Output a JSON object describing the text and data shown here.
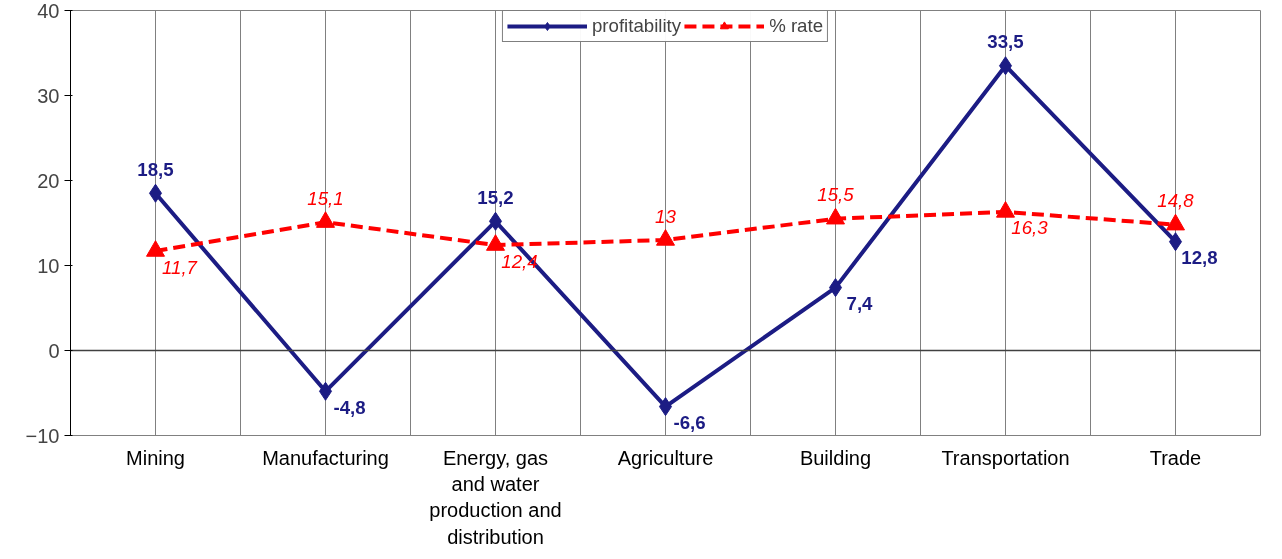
{
  "chart_data": {
    "type": "line",
    "categories": [
      "Mining",
      "Manufacturing",
      "Energy, gas and water production and distribution",
      "Agriculture",
      "Building",
      "Transportation",
      "Trade"
    ],
    "series": [
      {
        "name": "profitability",
        "color": "#1c1c84",
        "marker": "diamond",
        "line_style": "solid",
        "values": [
          18.5,
          -4.8,
          15.2,
          -6.6,
          7.4,
          33.5,
          12.8
        ],
        "value_labels": [
          "18,5",
          "-4,8",
          "15,2",
          "-6,6",
          "7,4",
          "33,5",
          "12,8"
        ]
      },
      {
        "name": "% rate",
        "color": "#ff0000",
        "marker": "triangle",
        "line_style": "dashed",
        "values": [
          11.7,
          15.1,
          12.4,
          13,
          15.5,
          16.3,
          14.8
        ],
        "value_labels": [
          "11,7",
          "15,1",
          "12,4",
          "13",
          "15,5",
          "16,3",
          "14,8"
        ]
      }
    ],
    "ylim": [
      -10,
      40
    ],
    "yticks": [
      -10,
      0,
      10,
      20,
      30,
      40
    ],
    "grid": "x",
    "legend": "top"
  }
}
